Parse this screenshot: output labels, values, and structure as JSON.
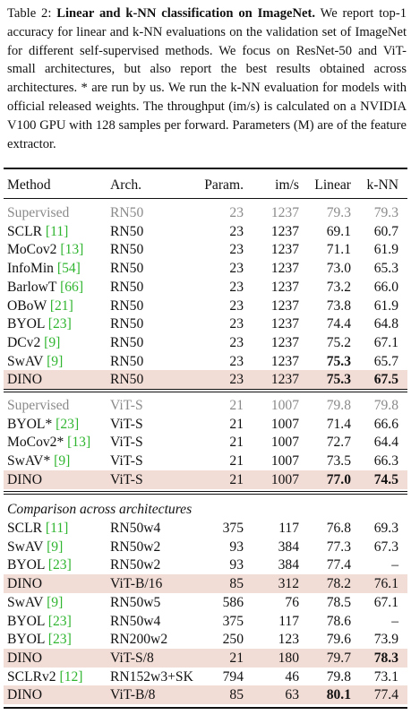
{
  "caption": {
    "label": "Table 2:",
    "title": "Linear and k-NN classification on ImageNet.",
    "body": "We report top-1 accuracy for linear and k-NN evaluations on the validation set of ImageNet for different self-supervised methods. We focus on ResNet-50 and ViT-small architectures, but also report the best results obtained across architectures. * are run by us. We run the k-NN evaluation for models with official released weights. The throughput (im/s) is calculated on a NVIDIA V100 GPU with 128 samples per forward. Parameters (M) are of the feature extractor."
  },
  "headers": {
    "method": "Method",
    "arch": "Arch.",
    "param": "Param.",
    "ims": "im/s",
    "linear": "Linear",
    "knn": "k-NN"
  },
  "section_label": "Comparison across architectures",
  "group1": [
    {
      "method": "Supervised",
      "cite": "",
      "arch": "RN50",
      "param": "23",
      "ims": "1237",
      "linear": "79.3",
      "knn": "79.3",
      "style": "gray"
    },
    {
      "method": "SCLR",
      "cite": "[11]",
      "arch": "RN50",
      "param": "23",
      "ims": "1237",
      "linear": "69.1",
      "knn": "60.7"
    },
    {
      "method": "MoCov2",
      "cite": "[13]",
      "arch": "RN50",
      "param": "23",
      "ims": "1237",
      "linear": "71.1",
      "knn": "61.9"
    },
    {
      "method": "InfoMin",
      "cite": "[54]",
      "arch": "RN50",
      "param": "23",
      "ims": "1237",
      "linear": "73.0",
      "knn": "65.3"
    },
    {
      "method": "BarlowT",
      "cite": "[66]",
      "arch": "RN50",
      "param": "23",
      "ims": "1237",
      "linear": "73.2",
      "knn": "66.0"
    },
    {
      "method": "OBoW",
      "cite": "[21]",
      "arch": "RN50",
      "param": "23",
      "ims": "1237",
      "linear": "73.8",
      "knn": "61.9"
    },
    {
      "method": "BYOL",
      "cite": "[23]",
      "arch": "RN50",
      "param": "23",
      "ims": "1237",
      "linear": "74.4",
      "knn": "64.8"
    },
    {
      "method": "DCv2",
      "cite": "[9]",
      "arch": "RN50",
      "param": "23",
      "ims": "1237",
      "linear": "75.2",
      "knn": "67.1"
    },
    {
      "method": "SwAV",
      "cite": "[9]",
      "arch": "RN50",
      "param": "23",
      "ims": "1237",
      "linear": "75.3",
      "knn": "65.7",
      "bold_linear": true
    },
    {
      "method": "DINO",
      "cite": "",
      "arch": "RN50",
      "param": "23",
      "ims": "1237",
      "linear": "75.3",
      "knn": "67.5",
      "style": "hl",
      "bold_linear": true,
      "bold_knn": true
    }
  ],
  "group2": [
    {
      "method": "Supervised",
      "cite": "",
      "arch": "ViT-S",
      "param": "21",
      "ims": "1007",
      "linear": "79.8",
      "knn": "79.8",
      "style": "gray"
    },
    {
      "method": "BYOL*",
      "cite": "[23]",
      "arch": "ViT-S",
      "param": "21",
      "ims": "1007",
      "linear": "71.4",
      "knn": "66.6"
    },
    {
      "method": "MoCov2*",
      "cite": "[13]",
      "arch": "ViT-S",
      "param": "21",
      "ims": "1007",
      "linear": "72.7",
      "knn": "64.4"
    },
    {
      "method": "SwAV*",
      "cite": "[9]",
      "arch": "ViT-S",
      "param": "21",
      "ims": "1007",
      "linear": "73.5",
      "knn": "66.3"
    },
    {
      "method": "DINO",
      "cite": "",
      "arch": "ViT-S",
      "param": "21",
      "ims": "1007",
      "linear": "77.0",
      "knn": "74.5",
      "style": "hl",
      "bold_linear": true,
      "bold_knn": true
    }
  ],
  "group3": [
    {
      "method": "SCLR",
      "cite": "[11]",
      "arch": "RN50w4",
      "param": "375",
      "ims": "117",
      "linear": "76.8",
      "knn": "69.3"
    },
    {
      "method": "SwAV",
      "cite": "[9]",
      "arch": "RN50w2",
      "param": "93",
      "ims": "384",
      "linear": "77.3",
      "knn": "67.3"
    },
    {
      "method": "BYOL",
      "cite": "[23]",
      "arch": "RN50w2",
      "param": "93",
      "ims": "384",
      "linear": "77.4",
      "knn": "–"
    },
    {
      "method": "DINO",
      "cite": "",
      "arch": "ViT-B/16",
      "param": "85",
      "ims": "312",
      "linear": "78.2",
      "knn": "76.1",
      "style": "hl"
    },
    {
      "method": "SwAV",
      "cite": "[9]",
      "arch": "RN50w5",
      "param": "586",
      "ims": "76",
      "linear": "78.5",
      "knn": "67.1"
    },
    {
      "method": "BYOL",
      "cite": "[23]",
      "arch": "RN50w4",
      "param": "375",
      "ims": "117",
      "linear": "78.6",
      "knn": "–"
    },
    {
      "method": "BYOL",
      "cite": "[23]",
      "arch": "RN200w2",
      "param": "250",
      "ims": "123",
      "linear": "79.6",
      "knn": "73.9"
    },
    {
      "method": "DINO",
      "cite": "",
      "arch": "ViT-S/8",
      "param": "21",
      "ims": "180",
      "linear": "79.7",
      "knn": "78.3",
      "style": "hl",
      "bold_knn": true
    },
    {
      "method": "SCLRv2",
      "cite": "[12]",
      "arch": "RN152w3+SK",
      "param": "794",
      "ims": "46",
      "linear": "79.8",
      "knn": "73.1"
    },
    {
      "method": "DINO",
      "cite": "",
      "arch": "ViT-B/8",
      "param": "85",
      "ims": "63",
      "linear": "80.1",
      "knn": "77.4",
      "style": "hl",
      "bold_linear": true
    }
  ]
}
